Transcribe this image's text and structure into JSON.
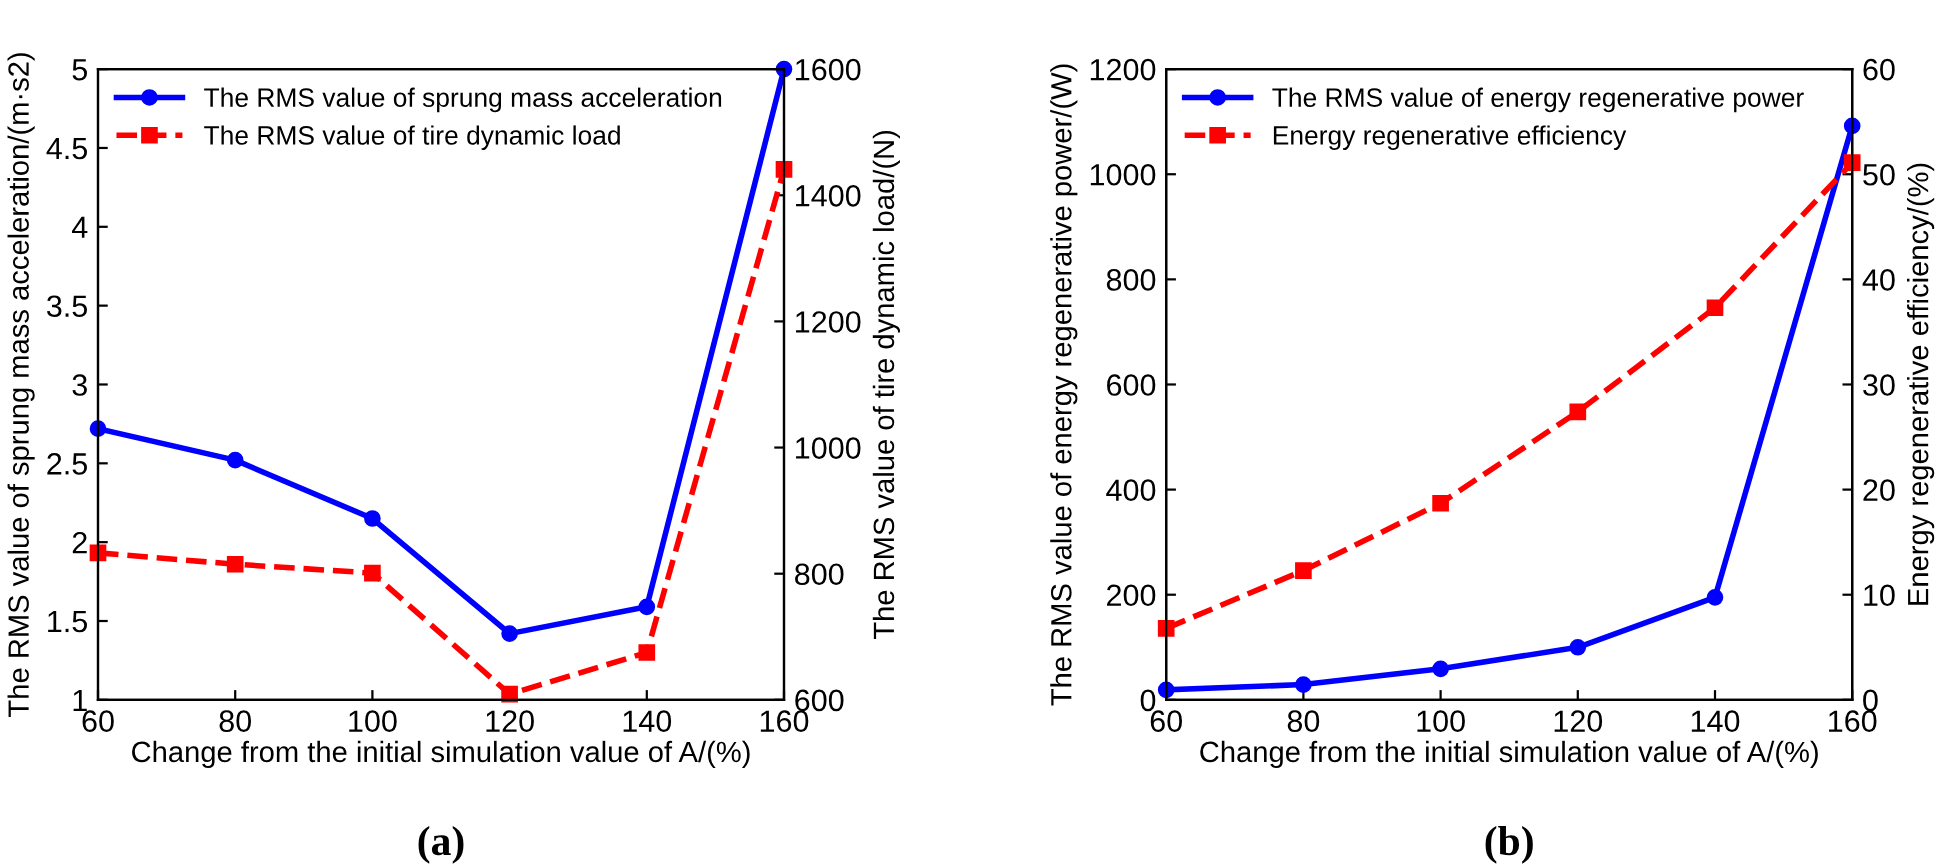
{
  "chart_data": [
    {
      "type": "line",
      "xlabel": "Change from the initial simulation value of A/(%)",
      "ylabel": "The RMS value of sprung mass acceleration/(m·s2)",
      "y2label": "The RMS value of tire dynamic load/(N)",
      "x": [
        60,
        80,
        100,
        120,
        140,
        160
      ],
      "xlim": [
        60,
        160
      ],
      "xticks": [
        60,
        80,
        100,
        120,
        140,
        160
      ],
      "ylim": [
        1,
        5
      ],
      "yticks": [
        1,
        1.5,
        2,
        2.5,
        3,
        3.5,
        4,
        4.5,
        5
      ],
      "y2lim": [
        600,
        1600
      ],
      "y2ticks": [
        600,
        800,
        1000,
        1200,
        1400,
        1600
      ],
      "grid": false,
      "legend": "top left",
      "annotations": [
        "(a)"
      ],
      "series": [
        {
          "name": "The RMS value of sprung mass acceleration",
          "color": "#0000ff",
          "marker": "circle",
          "line_style": "solid",
          "values": [
            2.72,
            2.52,
            2.15,
            1.42,
            1.59,
            5.0
          ]
        },
        {
          "name": "The RMS value of tire dynamic load",
          "color": "#ff0000",
          "marker": "square",
          "line_style": "dashed",
          "axis": "y2",
          "values": [
            833,
            815,
            801,
            609,
            675,
            1441
          ]
        }
      ]
    },
    {
      "type": "line",
      "xlabel": "Change from the initial simulation value of A/(%)",
      "ylabel": "The RMS value of energy regenerative power/(W)",
      "y2label": "Energy regenerative efficiency/(%)",
      "x": [
        60,
        80,
        100,
        120,
        140,
        160
      ],
      "xlim": [
        60,
        160
      ],
      "xticks": [
        60,
        80,
        100,
        120,
        140,
        160
      ],
      "ylim": [
        0,
        1200
      ],
      "yticks": [
        0,
        200,
        400,
        600,
        800,
        1000,
        1200
      ],
      "y2lim": [
        0,
        60
      ],
      "y2ticks": [
        0,
        10,
        20,
        30,
        40,
        50,
        60
      ],
      "grid": false,
      "legend": "top left",
      "annotations": [
        "(b)"
      ],
      "series": [
        {
          "name": "The RMS value of energy regenerative power",
          "color": "#0000ff",
          "marker": "circle",
          "line_style": "solid",
          "values": [
            19,
            29,
            59,
            100,
            195,
            1092
          ]
        },
        {
          "name": "Energy regenerative efficiency",
          "color": "#ff0000",
          "marker": "square",
          "line_style": "dashed",
          "axis": "y2",
          "values": [
            6.8,
            12.3,
            18.7,
            27.4,
            37.3,
            51.1
          ]
        }
      ]
    }
  ]
}
